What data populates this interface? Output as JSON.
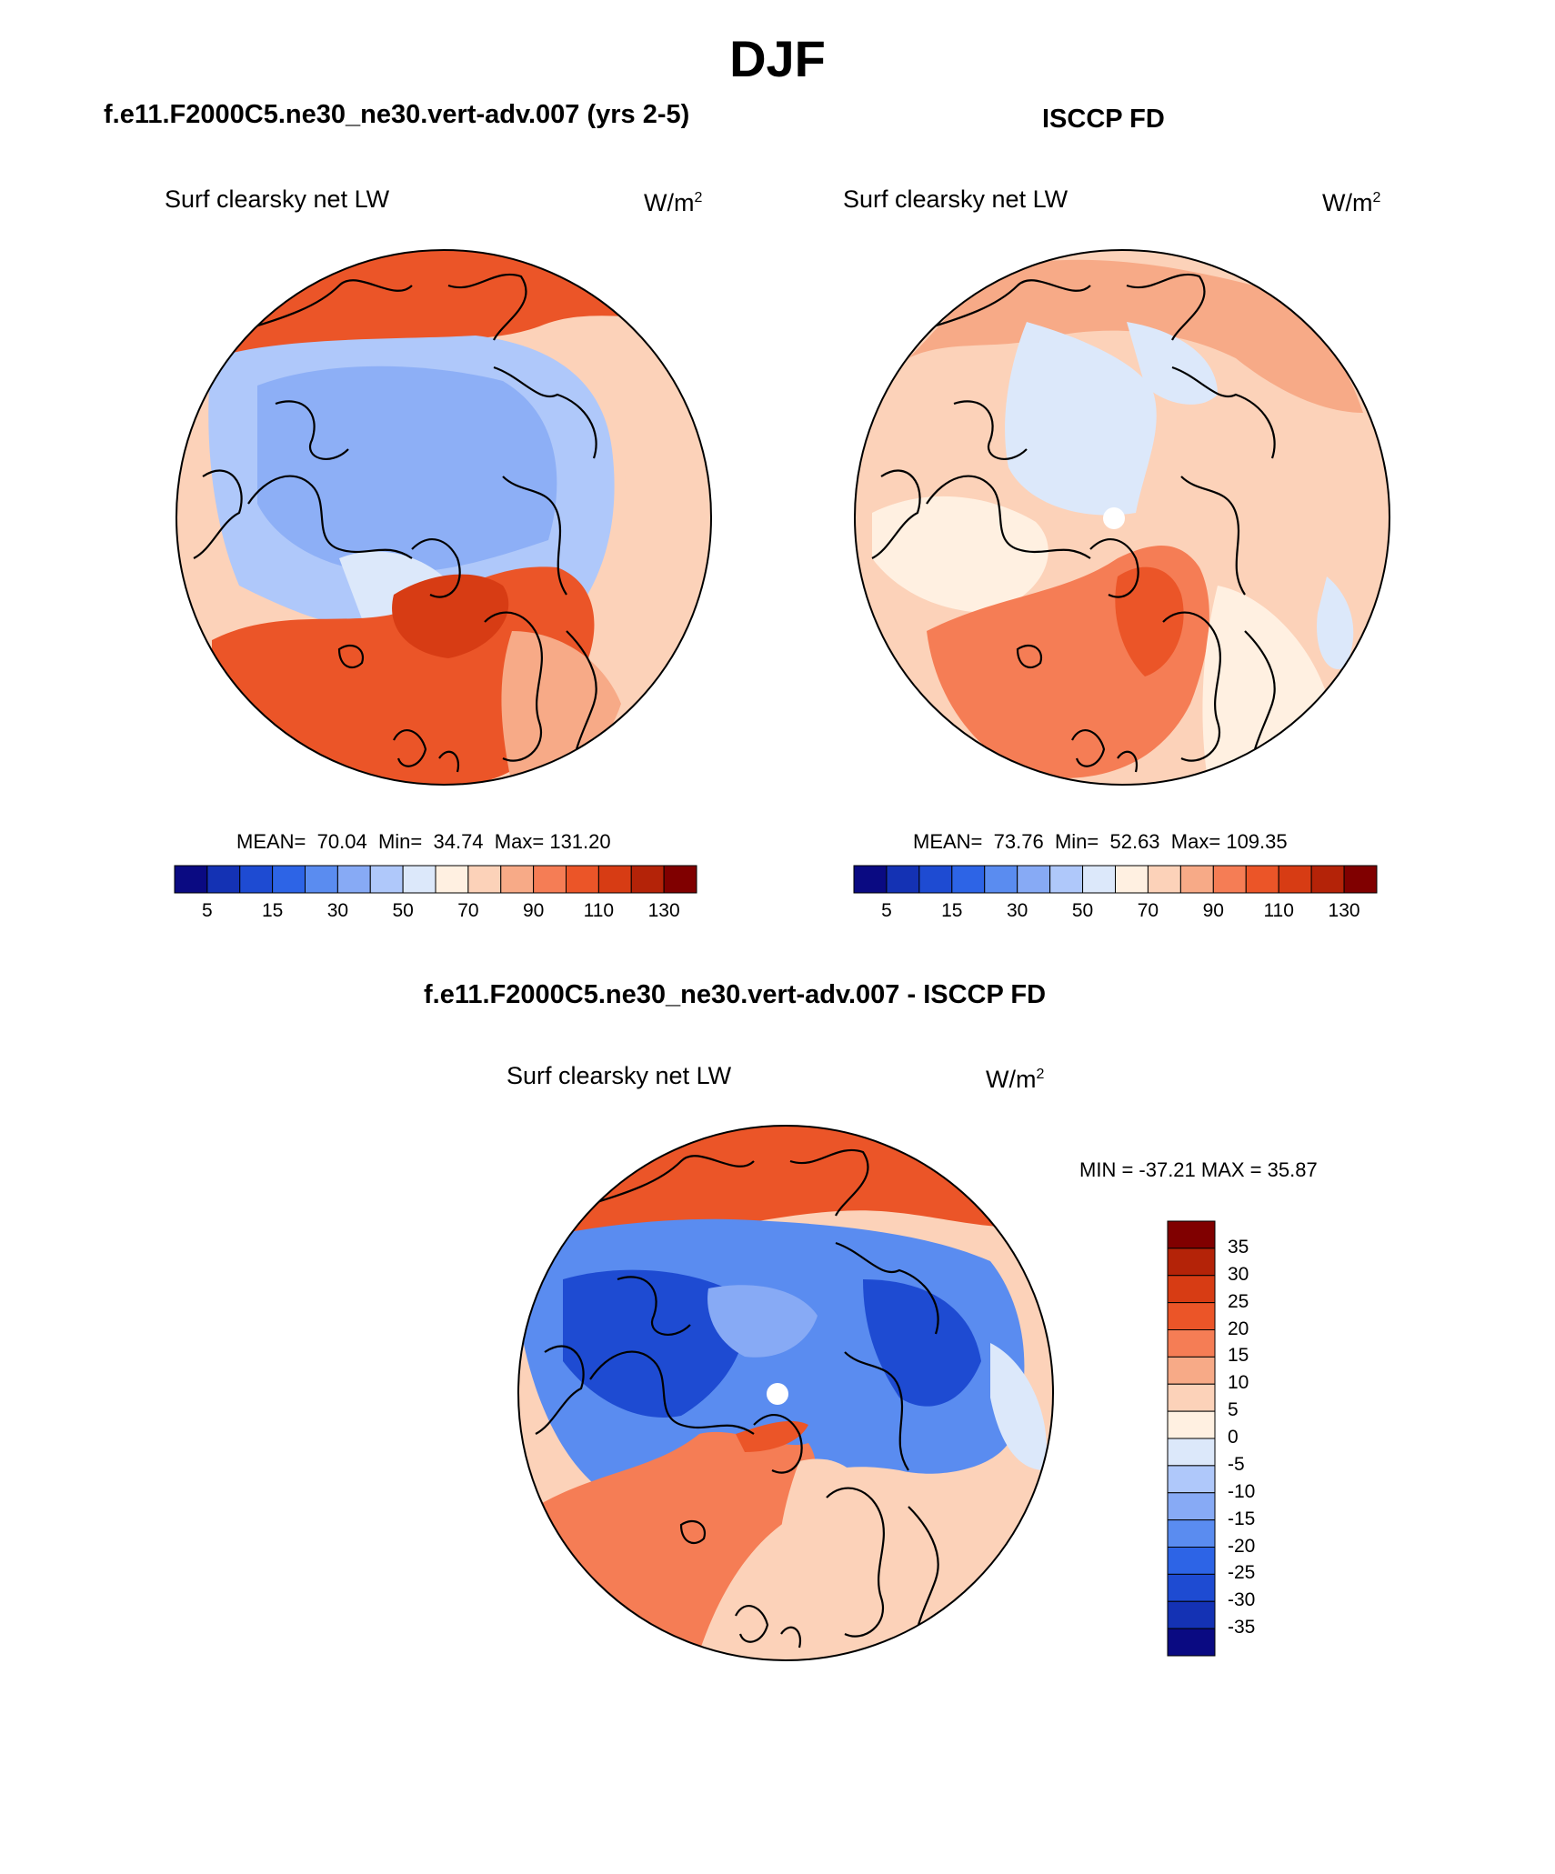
{
  "season": "DJF",
  "panels": {
    "model": {
      "title": "f.e11.F2000C5.ne30_ne30.vert-adv.007 (yrs 2-5)",
      "variable": "Surf clearsky net LW",
      "units_base": "W/m",
      "units_exp": "2",
      "mean_label": "MEAN=",
      "mean": "70.04",
      "min_label": "Min=",
      "min": "34.74",
      "max_label": "Max=",
      "max": "131.20",
      "tick_labels": [
        "5",
        "15",
        "30",
        "50",
        "70",
        "90",
        "110",
        "130"
      ]
    },
    "obs": {
      "title": "ISCCP FD",
      "variable": "Surf clearsky net LW",
      "units_base": "W/m",
      "units_exp": "2",
      "mean_label": "MEAN=",
      "mean": "73.76",
      "min_label": "Min=",
      "min": "52.63",
      "max_label": "Max=",
      "max": "109.35",
      "tick_labels": [
        "5",
        "15",
        "30",
        "50",
        "70",
        "90",
        "110",
        "130"
      ]
    },
    "diff": {
      "title": "f.e11.F2000C5.ne30_ne30.vert-adv.007 - ISCCP FD",
      "variable": "Surf clearsky net LW",
      "units_base": "W/m",
      "units_exp": "2",
      "minmax_text": "MIN = -37.21 MAX =  35.87",
      "tick_labels": [
        "35",
        "30",
        "25",
        "20",
        "15",
        "10",
        "5",
        "0",
        "-5",
        "-10",
        "-15",
        "-20",
        "-25",
        "-30",
        "-35"
      ]
    }
  },
  "colorbar_colors": {
    "abs": [
      "#0a0a82",
      "#1432b4",
      "#1e4bd2",
      "#2d64e6",
      "#5a8cf0",
      "#87aaf5",
      "#afc8fa",
      "#dce8fa",
      "#fff0e1",
      "#fcd2b9",
      "#f7aa87",
      "#f57d55",
      "#eb5528",
      "#d73c14",
      "#b42308",
      "#800000"
    ],
    "diff": [
      "#800000",
      "#b42308",
      "#d73c14",
      "#eb5528",
      "#f57d55",
      "#f7aa87",
      "#fcd2b9",
      "#fff0e1",
      "#dce8fa",
      "#afc8fa",
      "#87aaf5",
      "#5a8cf0",
      "#2d64e6",
      "#1e4bd2",
      "#1432b4",
      "#0a0a82"
    ]
  }
}
